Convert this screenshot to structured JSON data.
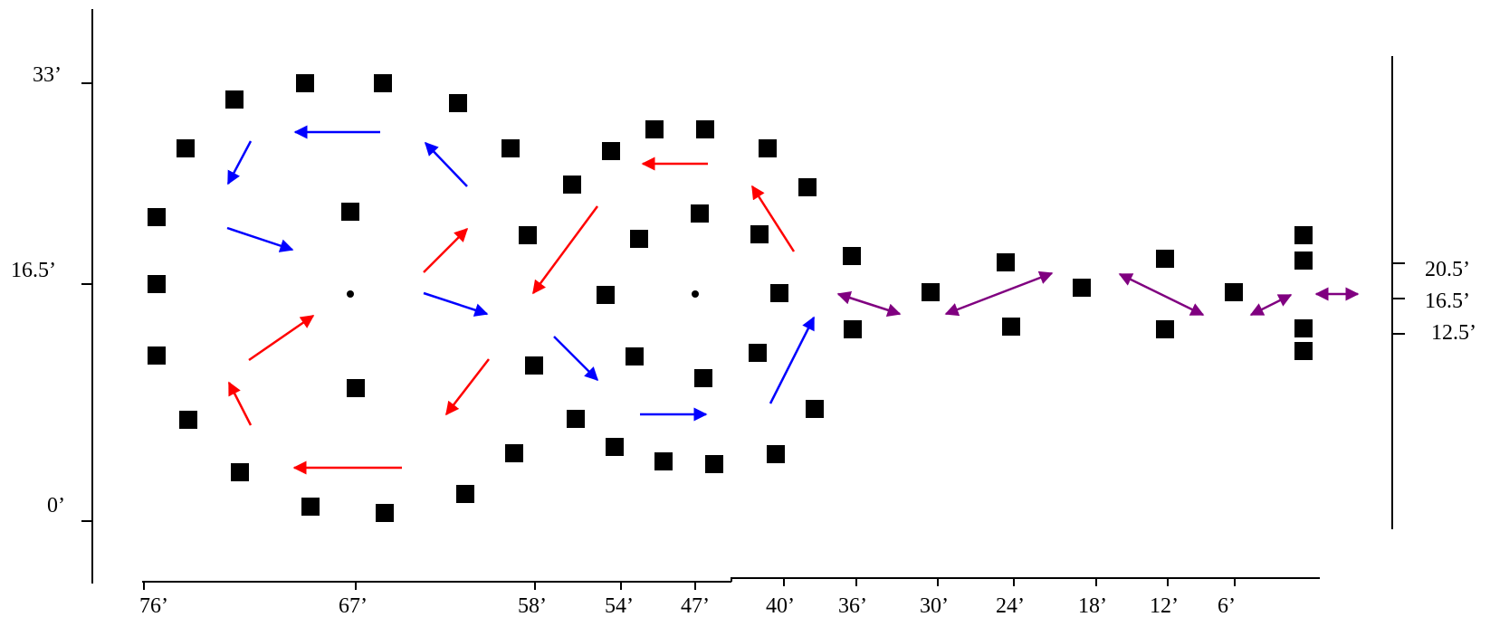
{
  "left_axis": {
    "labels": [
      "33’",
      "16.5’",
      "0’"
    ]
  },
  "right_axis": {
    "labels": [
      "20.5’",
      "16.5’",
      "12.5’"
    ]
  },
  "bottom_axis": {
    "labels": [
      "76’",
      "67’",
      "58’",
      "54’",
      "47’",
      "40’",
      "36’",
      "30’",
      "24’",
      "18’",
      "12’",
      "6’"
    ]
  },
  "cones": {
    "count": 62,
    "color": "#000000"
  },
  "arrows": {
    "colors": {
      "blue": "#0000ff",
      "red": "#ff0000",
      "purple": "#800080"
    }
  }
}
